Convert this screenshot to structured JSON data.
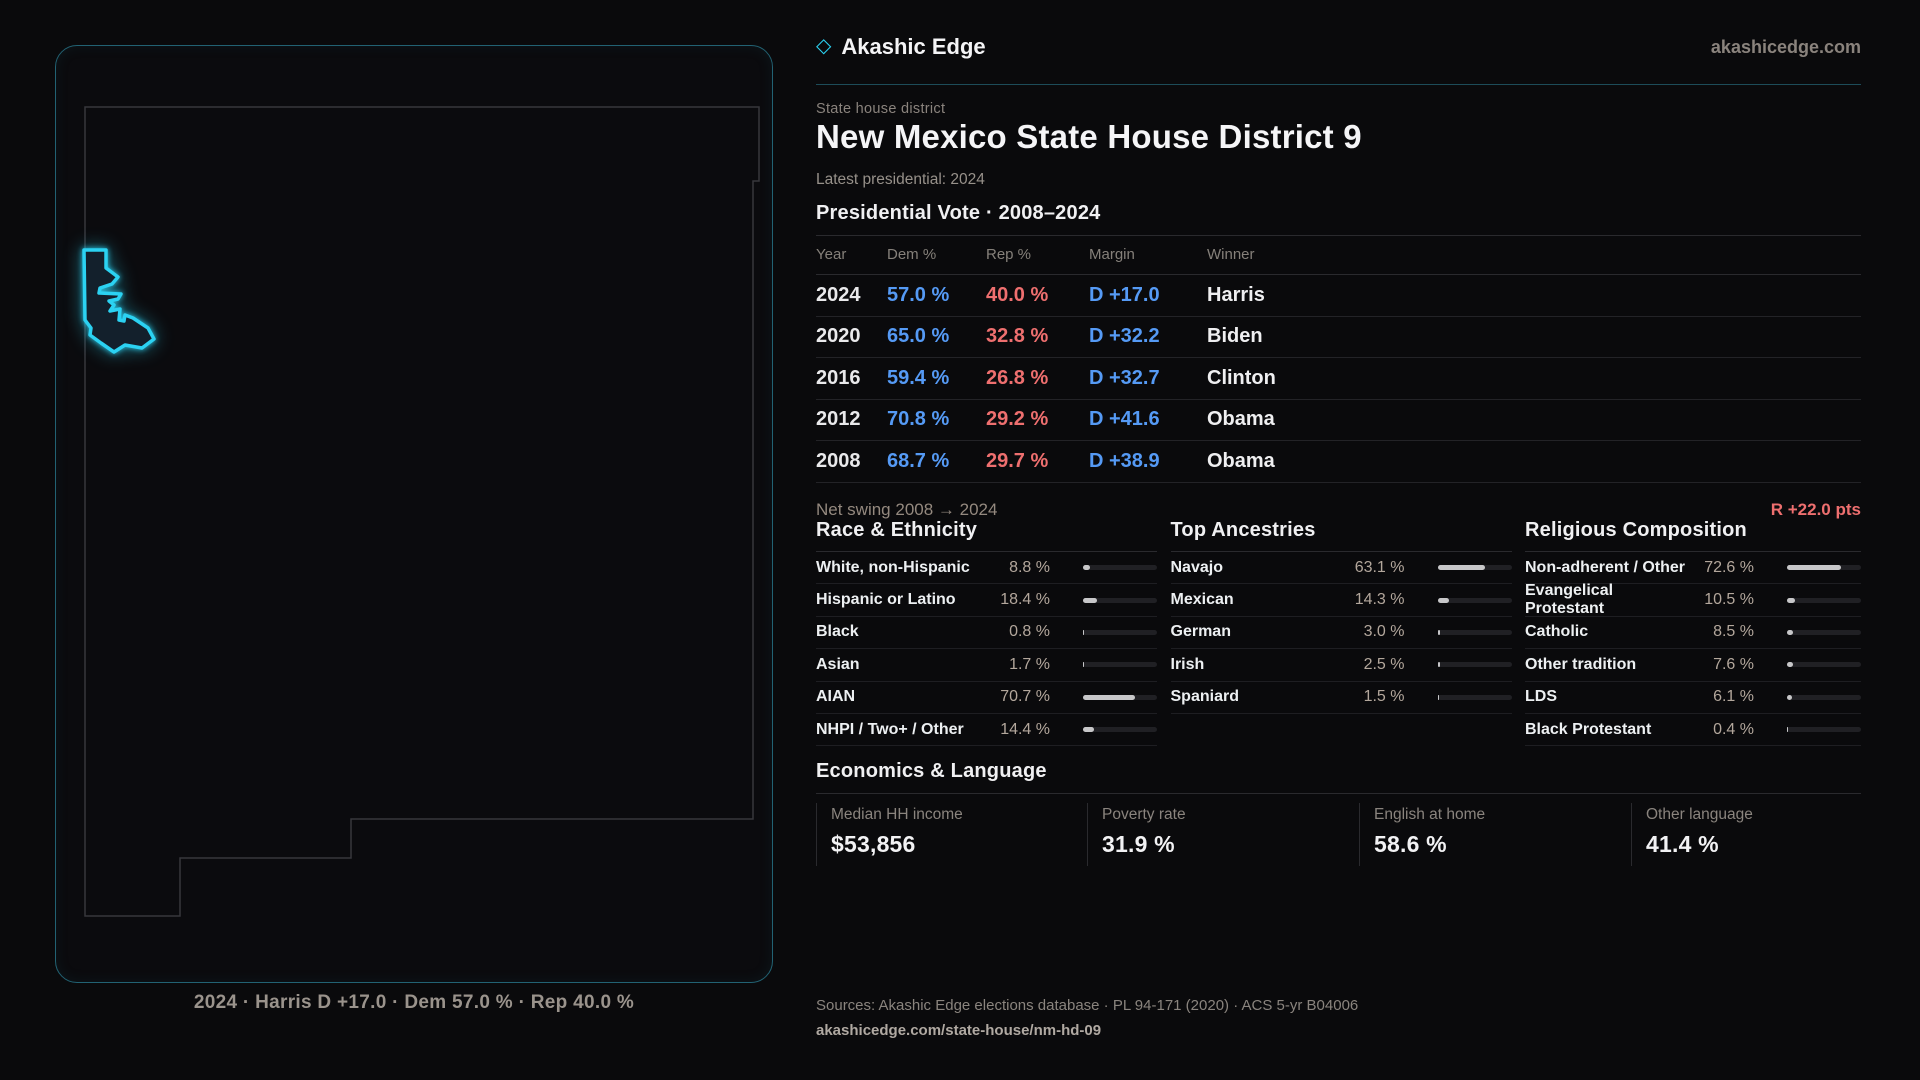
{
  "brand": {
    "icon": "diamond-icon",
    "name": "Akashic Edge",
    "domain": "akashicedge.com"
  },
  "header": {
    "kicker": "State house district",
    "title": "New Mexico State House District 9",
    "subtitle": "Latest presidential: 2024"
  },
  "vote_table": {
    "title": "Presidential Vote · 2008–2024",
    "columns": [
      "Year",
      "Dem %",
      "Rep %",
      "Margin",
      "Winner"
    ],
    "rows": [
      {
        "year": "2024",
        "dem": "57.0 %",
        "rep": "40.0 %",
        "margin": "D +17.0",
        "winner": "Harris"
      },
      {
        "year": "2020",
        "dem": "65.0 %",
        "rep": "32.8 %",
        "margin": "D +32.2",
        "winner": "Biden"
      },
      {
        "year": "2016",
        "dem": "59.4 %",
        "rep": "26.8 %",
        "margin": "D +32.7",
        "winner": "Clinton"
      },
      {
        "year": "2012",
        "dem": "70.8 %",
        "rep": "29.2 %",
        "margin": "D +41.6",
        "winner": "Obama"
      },
      {
        "year": "2008",
        "dem": "68.7 %",
        "rep": "29.7 %",
        "margin": "D +38.9",
        "winner": "Obama"
      }
    ],
    "net_swing_label": "Net swing 2008 → 2024",
    "net_swing_value": "R +22.0 pts"
  },
  "demographics": {
    "sections": [
      {
        "title": "Race & Ethnicity",
        "rows": [
          {
            "label": "White, non-Hispanic",
            "value": "8.8 %",
            "pct": 8.8
          },
          {
            "label": "Hispanic or Latino",
            "value": "18.4 %",
            "pct": 18.4
          },
          {
            "label": "Black",
            "value": "0.8 %",
            "pct": 0.8
          },
          {
            "label": "Asian",
            "value": "1.7 %",
            "pct": 1.7
          },
          {
            "label": "AIAN",
            "value": "70.7 %",
            "pct": 70.7
          },
          {
            "label": "NHPI / Two+ / Other",
            "value": "14.4 %",
            "pct": 14.4
          }
        ]
      },
      {
        "title": "Top Ancestries",
        "rows": [
          {
            "label": "Navajo",
            "value": "63.1 %",
            "pct": 63.1
          },
          {
            "label": "Mexican",
            "value": "14.3 %",
            "pct": 14.3
          },
          {
            "label": "German",
            "value": "3.0 %",
            "pct": 3.0
          },
          {
            "label": "Irish",
            "value": "2.5 %",
            "pct": 2.5
          },
          {
            "label": "Spaniard",
            "value": "1.5 %",
            "pct": 1.5
          }
        ]
      },
      {
        "title": "Religious Composition",
        "rows": [
          {
            "label": "Non-adherent / Other",
            "value": "72.6 %",
            "pct": 72.6
          },
          {
            "label": "Evangelical Protestant",
            "value": "10.5 %",
            "pct": 10.5
          },
          {
            "label": "Catholic",
            "value": "8.5 %",
            "pct": 8.5
          },
          {
            "label": "Other tradition",
            "value": "7.6 %",
            "pct": 7.6
          },
          {
            "label": "LDS",
            "value": "6.1 %",
            "pct": 6.1
          },
          {
            "label": "Black Protestant",
            "value": "0.4 %",
            "pct": 0.4
          }
        ]
      }
    ]
  },
  "economics": {
    "title": "Economics & Language",
    "stats": [
      {
        "label": "Median HH income",
        "value": "$53,856"
      },
      {
        "label": "Poverty rate",
        "value": "31.9 %"
      },
      {
        "label": "English at home",
        "value": "58.6 %"
      },
      {
        "label": "Other language",
        "value": "41.4 %"
      }
    ]
  },
  "footer": {
    "sources": "Sources: Akashic Edge elections database · PL 94-171 (2020) · ACS 5-yr B04006",
    "permalink": "akashicedge.com/state-house/nm-hd-09"
  },
  "map": {
    "caption": "2024 · Harris D +17.0 · Dem 57.0 % · Rep 40.0 %"
  },
  "colors": {
    "accent_cyan": "#2bd2f2",
    "dem_blue": "#559af5",
    "rep_red": "#ee6f6f",
    "swing_red": "#ee6f6f",
    "panel_border_teal": "#226273",
    "rule_teal": "#1d4c59"
  }
}
